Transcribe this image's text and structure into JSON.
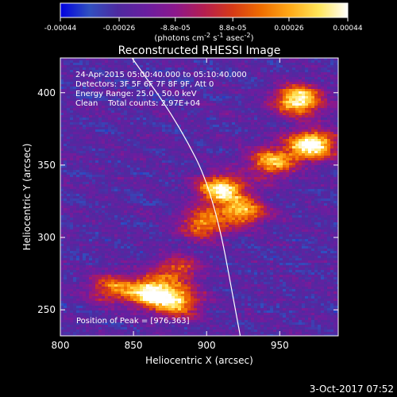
{
  "chart_data": {
    "type": "heatmap",
    "title": "Reconstructed RHESSI Image",
    "xlabel": "Heliocentric X (arcsec)",
    "ylabel": "Heliocentric Y (arcsec)",
    "xlim": [
      800,
      990
    ],
    "ylim": [
      232,
      424
    ],
    "xticks": [
      800,
      850,
      900,
      950
    ],
    "yticks": [
      250,
      300,
      350,
      400
    ],
    "colorbar": {
      "label_html": "(photons cm<tspan baseline-shift=\"super\" font-size=\"8\">-2</tspan> s<tspan baseline-shift=\"super\" font-size=\"8\">-1</tspan> asec<tspan baseline-shift=\"super\" font-size=\"8\">-2</tspan>)",
      "ticks": [
        "-0.00044",
        "-0.00026",
        "-8.8e-05",
        "8.8e-05",
        "0.00026",
        "0.00044"
      ],
      "tick_values": [
        -0.00044,
        -0.00026,
        -8.8e-05,
        8.8e-05,
        0.00026,
        0.00044
      ],
      "range": [
        -0.00044,
        0.00044
      ]
    },
    "annotations": [
      "24-Apr-2015 05:00:40.000 to 05:10:40.000",
      "Detectors: 3F 5F 6F 7F 8F 9F, Att 0",
      "Energy Range: 25.0 - 50.0 keV",
      "Clean    Total counts: 2.97E+04"
    ],
    "peak_label": "Position of Peak = [976,363]",
    "peak": [
      976,
      363
    ],
    "limb": {
      "description": "solar limb arc",
      "points": [
        [
          849,
          424
        ],
        [
          880,
          380
        ],
        [
          905,
          330
        ],
        [
          923,
          232
        ]
      ]
    },
    "sources": [
      {
        "x": 963,
        "y": 395,
        "amp": 1.0
      },
      {
        "x": 972,
        "y": 364,
        "amp": 1.05
      },
      {
        "x": 945,
        "y": 352,
        "amp": 0.75
      },
      {
        "x": 910,
        "y": 333,
        "amp": 0.95
      },
      {
        "x": 925,
        "y": 318,
        "amp": 0.7
      },
      {
        "x": 898,
        "y": 309,
        "amp": 0.65
      },
      {
        "x": 880,
        "y": 278,
        "amp": 0.5
      },
      {
        "x": 862,
        "y": 262,
        "amp": 0.95
      },
      {
        "x": 880,
        "y": 255,
        "amp": 0.75
      },
      {
        "x": 835,
        "y": 265,
        "amp": 0.55
      }
    ],
    "colormap": [
      "#0000e0",
      "#3050c0",
      "#4e2aa0",
      "#6a1ea0",
      "#8c188c",
      "#b41e50",
      "#d63a16",
      "#f06e00",
      "#ffaa18",
      "#ffe65a",
      "#ffffff"
    ]
  },
  "footer": {
    "date": "3-Oct-2017 07:52"
  }
}
